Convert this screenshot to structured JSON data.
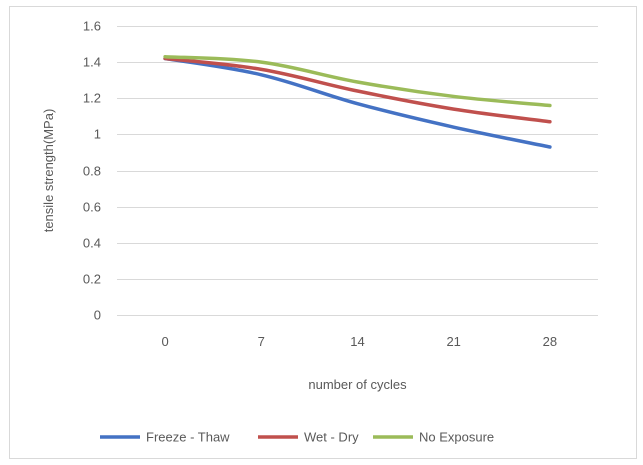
{
  "chart_data": {
    "type": "line",
    "categories": [
      "0",
      "7",
      "14",
      "21",
      "28"
    ],
    "series": [
      {
        "name": "Freeze - Thaw",
        "color": "#4472C4",
        "values": [
          1.42,
          1.33,
          1.17,
          1.04,
          0.93
        ]
      },
      {
        "name": "Wet - Dry",
        "color": "#C0504D",
        "values": [
          1.42,
          1.36,
          1.24,
          1.14,
          1.07
        ]
      },
      {
        "name": "No Exposure",
        "color": "#9BBB59",
        "values": [
          1.43,
          1.4,
          1.29,
          1.21,
          1.16
        ]
      }
    ],
    "xlabel": "number of cycles",
    "ylabel": "tensile strength(MPa)",
    "ylim": [
      0,
      1.6
    ],
    "yticks": [
      "0",
      "0.2",
      "0.4",
      "0.6",
      "0.8",
      "1",
      "1.2",
      "1.4",
      "1.6"
    ],
    "grid": true,
    "legend_position": "bottom"
  }
}
